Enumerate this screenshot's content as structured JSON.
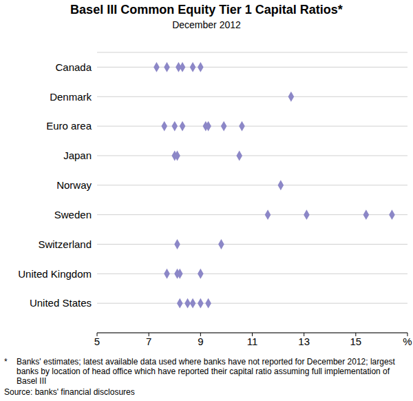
{
  "chart_data": {
    "type": "scatter",
    "title": "Basel III Common Equity Tier 1 Capital Ratios*",
    "subtitle": "December 2012",
    "categories": [
      "Canada",
      "Denmark",
      "Euro area",
      "Japan",
      "Norway",
      "Sweden",
      "Switzerland",
      "United Kingdom",
      "United States"
    ],
    "values": [
      [
        7.3,
        7.7,
        8.15,
        8.3,
        8.7,
        9.0
      ],
      [
        12.5
      ],
      [
        7.6,
        8.0,
        8.3,
        9.2,
        9.3,
        9.9,
        10.6
      ],
      [
        8.0,
        8.1,
        10.5
      ],
      [
        12.1
      ],
      [
        11.6,
        13.1,
        15.4,
        16.4
      ],
      [
        8.1,
        9.8
      ],
      [
        7.7,
        8.1,
        8.2,
        9.0
      ],
      [
        8.2,
        8.5,
        8.7,
        9.0,
        9.3
      ]
    ],
    "xlim": [
      5,
      17
    ],
    "xticks": [
      5,
      7,
      9,
      11,
      13,
      15,
      {
        "value": 17,
        "label": "%"
      }
    ],
    "grid": true,
    "color": "#8c87c7",
    "marker": "diamond",
    "footnote": {
      "marker": "*",
      "text": "Banks' estimates; latest available data used where banks have not reported for December 2012; largest banks by location of head office which have reported their capital ratio assuming full implementation of Basel III"
    },
    "source": "Source: banks' financial disclosures"
  }
}
